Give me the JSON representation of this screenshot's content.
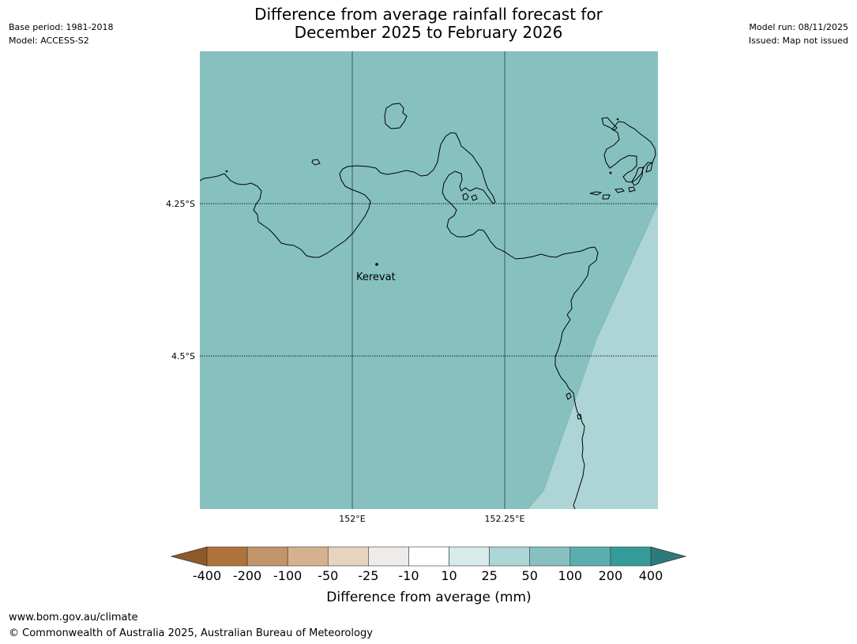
{
  "header": {
    "title_line1": "Difference from average rainfall forecast for",
    "title_line2": "December 2025 to February 2026",
    "base_period": "Base period: 1981-2018",
    "model": "Model: ACCESS-S2",
    "model_run": "Model run: 08/11/2025",
    "issued": "Issued: Map not issued"
  },
  "map": {
    "lat_labels": [
      "4.25°S",
      "4.5°S"
    ],
    "lon_labels": [
      "152°E",
      "152.25°E"
    ],
    "place_name": "Kerevat",
    "colors": {
      "dominant_category": "#86c1c0",
      "secondary_category": "#aed5d5",
      "coastline": "#000000",
      "gridline": "#3f5858"
    }
  },
  "colorbar": {
    "title": "Difference from average (mm)",
    "tick_labels": [
      "-400",
      "-200",
      "-100",
      "-50",
      "-25",
      "-10",
      "10",
      "25",
      "50",
      "100",
      "200",
      "400"
    ],
    "low_extend_color": "#8f5a29",
    "high_extend_color": "#2c7b7a",
    "segment_colors": [
      "#ad733a",
      "#c29469",
      "#d5b28f",
      "#e6d3c0",
      "#efebe8",
      "#ffffff",
      "#d8eaea",
      "#aed5d5",
      "#86c1c0",
      "#5aaeae",
      "#349b9b"
    ]
  },
  "footer": {
    "url": "www.bom.gov.au/climate",
    "copyright": "© Commonwealth of Australia 2025, Australian Bureau of Meteorology"
  }
}
